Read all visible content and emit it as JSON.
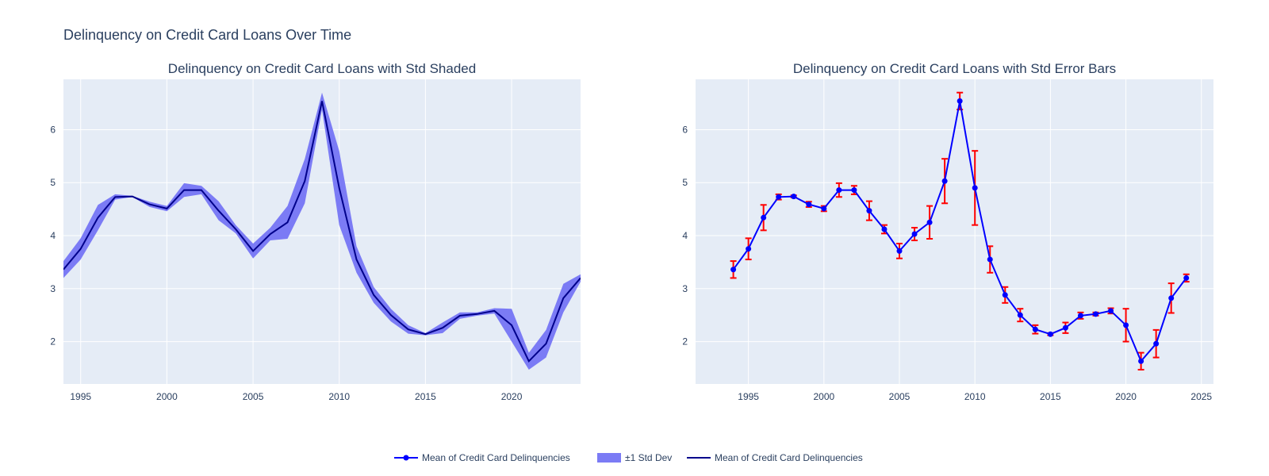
{
  "title": "Delinquency on Credit Card Loans Over Time",
  "colors": {
    "plot_bg": "#E5ECF6",
    "grid": "#ffffff",
    "band_fill": "#7B7BF5",
    "left_line": "#00008B",
    "right_line": "#0000FF",
    "error_bar": "#FF0000",
    "text": "#2a3f5f"
  },
  "chart_data": [
    {
      "type": "area",
      "title": "Delinquency on Credit Card Loans with Std Shaded",
      "xlabel": "",
      "ylabel": "",
      "xlim": [
        1994,
        2024
      ],
      "ylim": [
        1.2,
        6.95
      ],
      "x_ticks": [
        1995,
        2000,
        2005,
        2010,
        2015,
        2020
      ],
      "y_ticks": [
        2,
        3,
        4,
        5,
        6
      ],
      "grid": true,
      "series": [
        {
          "name": "Mean of Credit Card Delinquencies",
          "x": [
            1994,
            1995,
            1996,
            1997,
            1998,
            1999,
            2000,
            2001,
            2002,
            2003,
            2004,
            2005,
            2006,
            2007,
            2008,
            2009,
            2010,
            2011,
            2012,
            2013,
            2014,
            2015,
            2016,
            2017,
            2018,
            2019,
            2020,
            2021,
            2022,
            2023,
            2024
          ],
          "y": [
            3.36,
            3.75,
            4.34,
            4.73,
            4.74,
            4.59,
            4.51,
            4.86,
            4.86,
            4.47,
            4.12,
            3.71,
            4.03,
            4.25,
            5.03,
            6.54,
            4.9,
            3.55,
            2.88,
            2.5,
            2.23,
            2.14,
            2.26,
            2.49,
            2.52,
            2.58,
            2.31,
            1.63,
            1.96,
            2.82,
            3.2
          ],
          "y_upper": [
            3.52,
            3.95,
            4.58,
            4.78,
            4.75,
            4.64,
            4.56,
            4.99,
            4.94,
            4.65,
            4.2,
            3.85,
            4.15,
            4.56,
            5.45,
            6.7,
            5.6,
            3.8,
            3.03,
            2.62,
            2.31,
            2.16,
            2.36,
            2.55,
            2.55,
            2.63,
            2.62,
            1.79,
            2.22,
            3.09,
            3.27
          ],
          "y_lower": [
            3.2,
            3.55,
            4.1,
            4.68,
            4.73,
            4.54,
            4.46,
            4.73,
            4.78,
            4.29,
            4.04,
            3.57,
            3.91,
            3.94,
            4.61,
            6.38,
            4.2,
            3.3,
            2.73,
            2.38,
            2.15,
            2.12,
            2.16,
            2.43,
            2.49,
            2.53,
            2.0,
            1.47,
            1.7,
            2.55,
            3.13
          ]
        }
      ]
    },
    {
      "type": "line",
      "title": "Delinquency on Credit Card Loans with Std Error Bars",
      "xlabel": "",
      "ylabel": "",
      "xlim": [
        1991.5,
        2025.8
      ],
      "ylim": [
        1.2,
        6.95
      ],
      "x_ticks": [
        1995,
        2000,
        2005,
        2010,
        2015,
        2020,
        2025
      ],
      "y_ticks": [
        2,
        3,
        4,
        5,
        6
      ],
      "grid": true,
      "series": [
        {
          "name": "Mean of Credit Card Delinquencies",
          "x": [
            1994,
            1995,
            1996,
            1997,
            1998,
            1999,
            2000,
            2001,
            2002,
            2003,
            2004,
            2005,
            2006,
            2007,
            2008,
            2009,
            2010,
            2011,
            2012,
            2013,
            2014,
            2015,
            2016,
            2017,
            2018,
            2019,
            2020,
            2021,
            2022,
            2023,
            2024
          ],
          "y": [
            3.36,
            3.75,
            4.34,
            4.73,
            4.74,
            4.59,
            4.51,
            4.86,
            4.86,
            4.47,
            4.12,
            3.71,
            4.03,
            4.25,
            5.03,
            6.54,
            4.9,
            3.55,
            2.88,
            2.5,
            2.23,
            2.14,
            2.26,
            2.49,
            2.52,
            2.58,
            2.31,
            1.63,
            1.96,
            2.82,
            3.2
          ],
          "error": [
            0.16,
            0.2,
            0.24,
            0.05,
            0.02,
            0.05,
            0.05,
            0.13,
            0.08,
            0.18,
            0.08,
            0.14,
            0.12,
            0.31,
            0.42,
            0.16,
            0.7,
            0.25,
            0.15,
            0.12,
            0.08,
            0.02,
            0.1,
            0.06,
            0.03,
            0.05,
            0.31,
            0.16,
            0.26,
            0.28,
            0.07
          ]
        }
      ]
    }
  ],
  "legend": {
    "placement": "bottom-center",
    "items": [
      {
        "label": "Mean of Credit Card Delinquencies",
        "kind": "line-marker"
      },
      {
        "label": "±1 Std Dev",
        "kind": "fill"
      },
      {
        "label": "Mean of Credit Card Delinquencies",
        "kind": "line"
      }
    ]
  }
}
